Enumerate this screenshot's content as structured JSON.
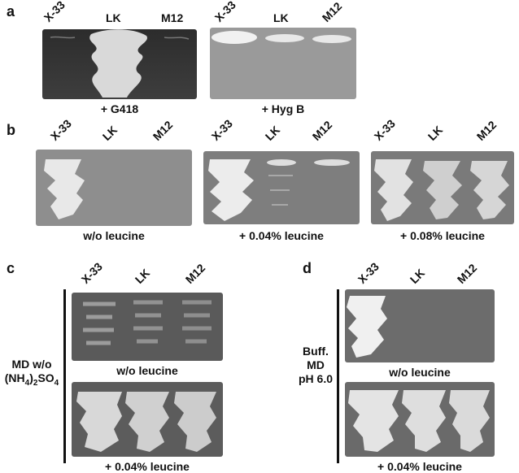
{
  "panels": {
    "a": {
      "label": "a",
      "left": {
        "strains": [
          "X-33",
          "LK",
          "M12"
        ],
        "caption": "+ G418"
      },
      "right": {
        "strains": [
          "X-33",
          "LK",
          "M12"
        ],
        "caption": "+ Hyg B"
      }
    },
    "b": {
      "label": "b",
      "plates": [
        {
          "strains": [
            "X-33",
            "LK",
            "M12"
          ],
          "caption": "w/o leucine"
        },
        {
          "strains": [
            "X-33",
            "LK",
            "M12"
          ],
          "caption": "+ 0.04% leucine"
        },
        {
          "strains": [
            "X-33",
            "LK",
            "M12"
          ],
          "caption": "+ 0.08% leucine"
        }
      ]
    },
    "c": {
      "label": "c",
      "strains": [
        "X-33",
        "LK",
        "M12"
      ],
      "side_label": {
        "line1": "MD w/o",
        "line2_pre": "(NH",
        "sub1": "4",
        "mid": ")",
        "sub2": "2",
        "post": "SO",
        "sub3": "4"
      },
      "captions": [
        "w/o leucine",
        "+ 0.04% leucine"
      ]
    },
    "d": {
      "label": "d",
      "strains": [
        "X-33",
        "LK",
        "M12"
      ],
      "side_label": [
        "Buff.",
        "MD",
        "pH 6.0"
      ],
      "captions": [
        "w/o leucine",
        "+ 0.04% leucine"
      ]
    }
  }
}
